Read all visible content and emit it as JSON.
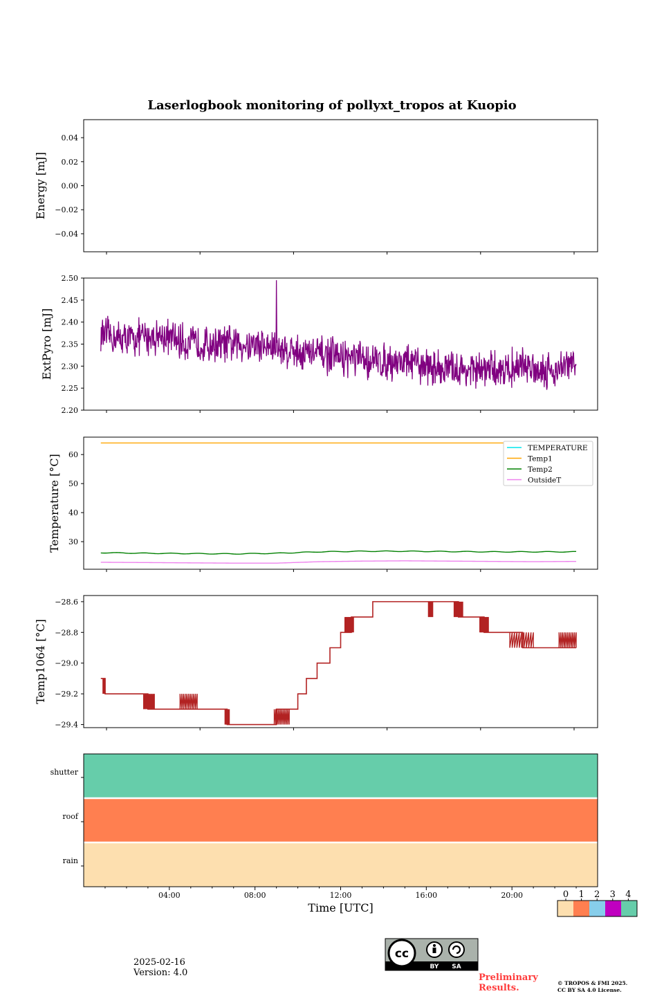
{
  "title": "Laserlogbook monitoring of pollyxt_tropos at Kuopio",
  "footer": {
    "date": "2025-02-16",
    "version": "Version: 4.0",
    "preliminary_line1": "Preliminary",
    "preliminary_line2": "Results.",
    "copyright_line1": "© TROPOS & FMI 2025.",
    "copyright_line2": "CC BY SA 4.0 License.",
    "license_badge": {
      "left": "BY",
      "right": "SA",
      "logo_text": "cc"
    }
  },
  "colors": {
    "extpyro": "#800080",
    "temp1064": "#b22222",
    "TEMPERATURE": "#00e5ee",
    "Temp1": "#ffa500",
    "Temp2": "#008000",
    "OutsideT": "#ee82ee",
    "status": [
      "#fddfaf",
      "#ff7f50",
      "#87ceeb",
      "#c000c0",
      "#66cdaa"
    ]
  },
  "chart_data": [
    {
      "type": "line",
      "ylabel": "Energy [mJ]",
      "ylim": [
        -0.055,
        0.055
      ],
      "yticks": [
        "0.04",
        "0.02",
        "0.00",
        "−0.02",
        "−0.04"
      ],
      "yticks_values": [
        0.04,
        0.02,
        0.0,
        -0.02,
        -0.04
      ],
      "series": []
    },
    {
      "type": "line",
      "ylabel": "ExtPyro [mJ]",
      "ylim": [
        2.2,
        2.5
      ],
      "yticks": [
        "2.50",
        "2.45",
        "2.40",
        "2.35",
        "2.30",
        "2.25",
        "2.20"
      ],
      "yticks_values": [
        2.5,
        2.45,
        2.4,
        2.35,
        2.3,
        2.25,
        2.2
      ],
      "series": [
        {
          "x_hours": [
            0.8,
            2.0,
            3.5,
            5.0,
            6.5,
            8.0,
            9.0,
            10.5,
            12.0,
            13.5,
            15.0,
            16.0,
            17.5,
            19.0,
            20.5,
            22.0,
            23.0
          ],
          "y": [
            2.37,
            2.36,
            2.37,
            2.35,
            2.35,
            2.35,
            2.34,
            2.33,
            2.32,
            2.31,
            2.31,
            2.3,
            2.29,
            2.29,
            2.3,
            2.29,
            2.31
          ],
          "noise_amplitude": 0.05,
          "max_point": {
            "x_hours": 9.0,
            "y": 2.495
          }
        }
      ]
    },
    {
      "type": "line",
      "ylabel": "Temperature [°C]",
      "ylim": [
        20.5,
        66.0
      ],
      "yticks": [
        "60",
        "50",
        "40",
        "30"
      ],
      "yticks_values": [
        60,
        50,
        40,
        30
      ],
      "legend": {
        "placement": "upper right",
        "entries": [
          "TEMPERATURE",
          "Temp1",
          "Temp2",
          "OutsideT"
        ]
      },
      "series": [
        {
          "name": "TEMPERATURE",
          "x_hours": [],
          "y": []
        },
        {
          "name": "Temp1",
          "x_hours": [
            0.8,
            23.0
          ],
          "y": [
            64.0,
            64.0
          ]
        },
        {
          "name": "Temp2",
          "x_hours": [
            0.8,
            3.0,
            5.0,
            7.0,
            9.0,
            11.0,
            13.0,
            15.0,
            17.0,
            19.0,
            21.0,
            23.0
          ],
          "y": [
            26.2,
            26.0,
            25.9,
            25.8,
            26.0,
            26.5,
            26.7,
            26.7,
            26.6,
            26.5,
            26.5,
            26.5
          ]
        },
        {
          "name": "OutsideT",
          "x_hours": [
            0.8,
            3.0,
            5.0,
            7.0,
            9.0,
            11.0,
            13.0,
            15.0,
            17.0,
            19.0,
            21.0,
            23.0
          ],
          "y": [
            22.9,
            22.8,
            22.7,
            22.6,
            22.6,
            23.1,
            23.3,
            23.4,
            23.3,
            23.2,
            23.1,
            23.2
          ]
        }
      ]
    },
    {
      "type": "line",
      "ylabel": "Temp1064 [°C]",
      "ylim": [
        -29.42,
        -28.56
      ],
      "yticks": [
        "−28.6",
        "−28.8",
        "−29.0",
        "−29.2",
        "−29.4"
      ],
      "yticks_values": [
        -28.6,
        -28.8,
        -29.0,
        -29.2,
        -29.4
      ],
      "series": [
        {
          "x_hours": [
            0.8,
            1.0,
            1.0,
            3.0,
            3.0,
            5.3,
            5.3,
            6.7,
            6.7,
            9.0,
            9.0,
            10.0,
            10.0,
            10.4,
            10.4,
            10.9,
            10.9,
            11.5,
            11.5,
            12.0,
            12.0,
            12.5,
            12.5,
            13.5,
            13.5,
            17.5,
            17.5,
            18.7,
            18.7,
            20.5,
            20.5,
            23.0
          ],
          "y": [
            -29.1,
            -29.1,
            -29.2,
            -29.2,
            -29.3,
            -29.3,
            -29.3,
            -29.3,
            -29.4,
            -29.4,
            -29.3,
            -29.3,
            -29.2,
            -29.2,
            -29.1,
            -29.1,
            -29.0,
            -29.0,
            -28.9,
            -28.9,
            -28.8,
            -28.8,
            -28.7,
            -28.7,
            -28.6,
            -28.6,
            -28.7,
            -28.7,
            -28.8,
            -28.8,
            -28.9,
            -28.9
          ]
        }
      ]
    },
    {
      "type": "heatmap",
      "ylabels": [
        "shutter",
        "roof",
        "rain"
      ],
      "xlabel": "Time [UTC]",
      "xticks": [
        "04:00",
        "08:00",
        "12:00",
        "16:00",
        "20:00"
      ],
      "xticks_values": [
        4,
        8,
        12,
        16,
        20
      ],
      "xlim_hours": [
        0,
        24
      ],
      "rows": [
        {
          "name": "shutter",
          "value": 4
        },
        {
          "name": "roof",
          "value": 1
        },
        {
          "name": "rain",
          "value": 0
        }
      ],
      "colorbar": {
        "ticks": [
          "0",
          "1",
          "2",
          "3",
          "4"
        ]
      }
    }
  ]
}
